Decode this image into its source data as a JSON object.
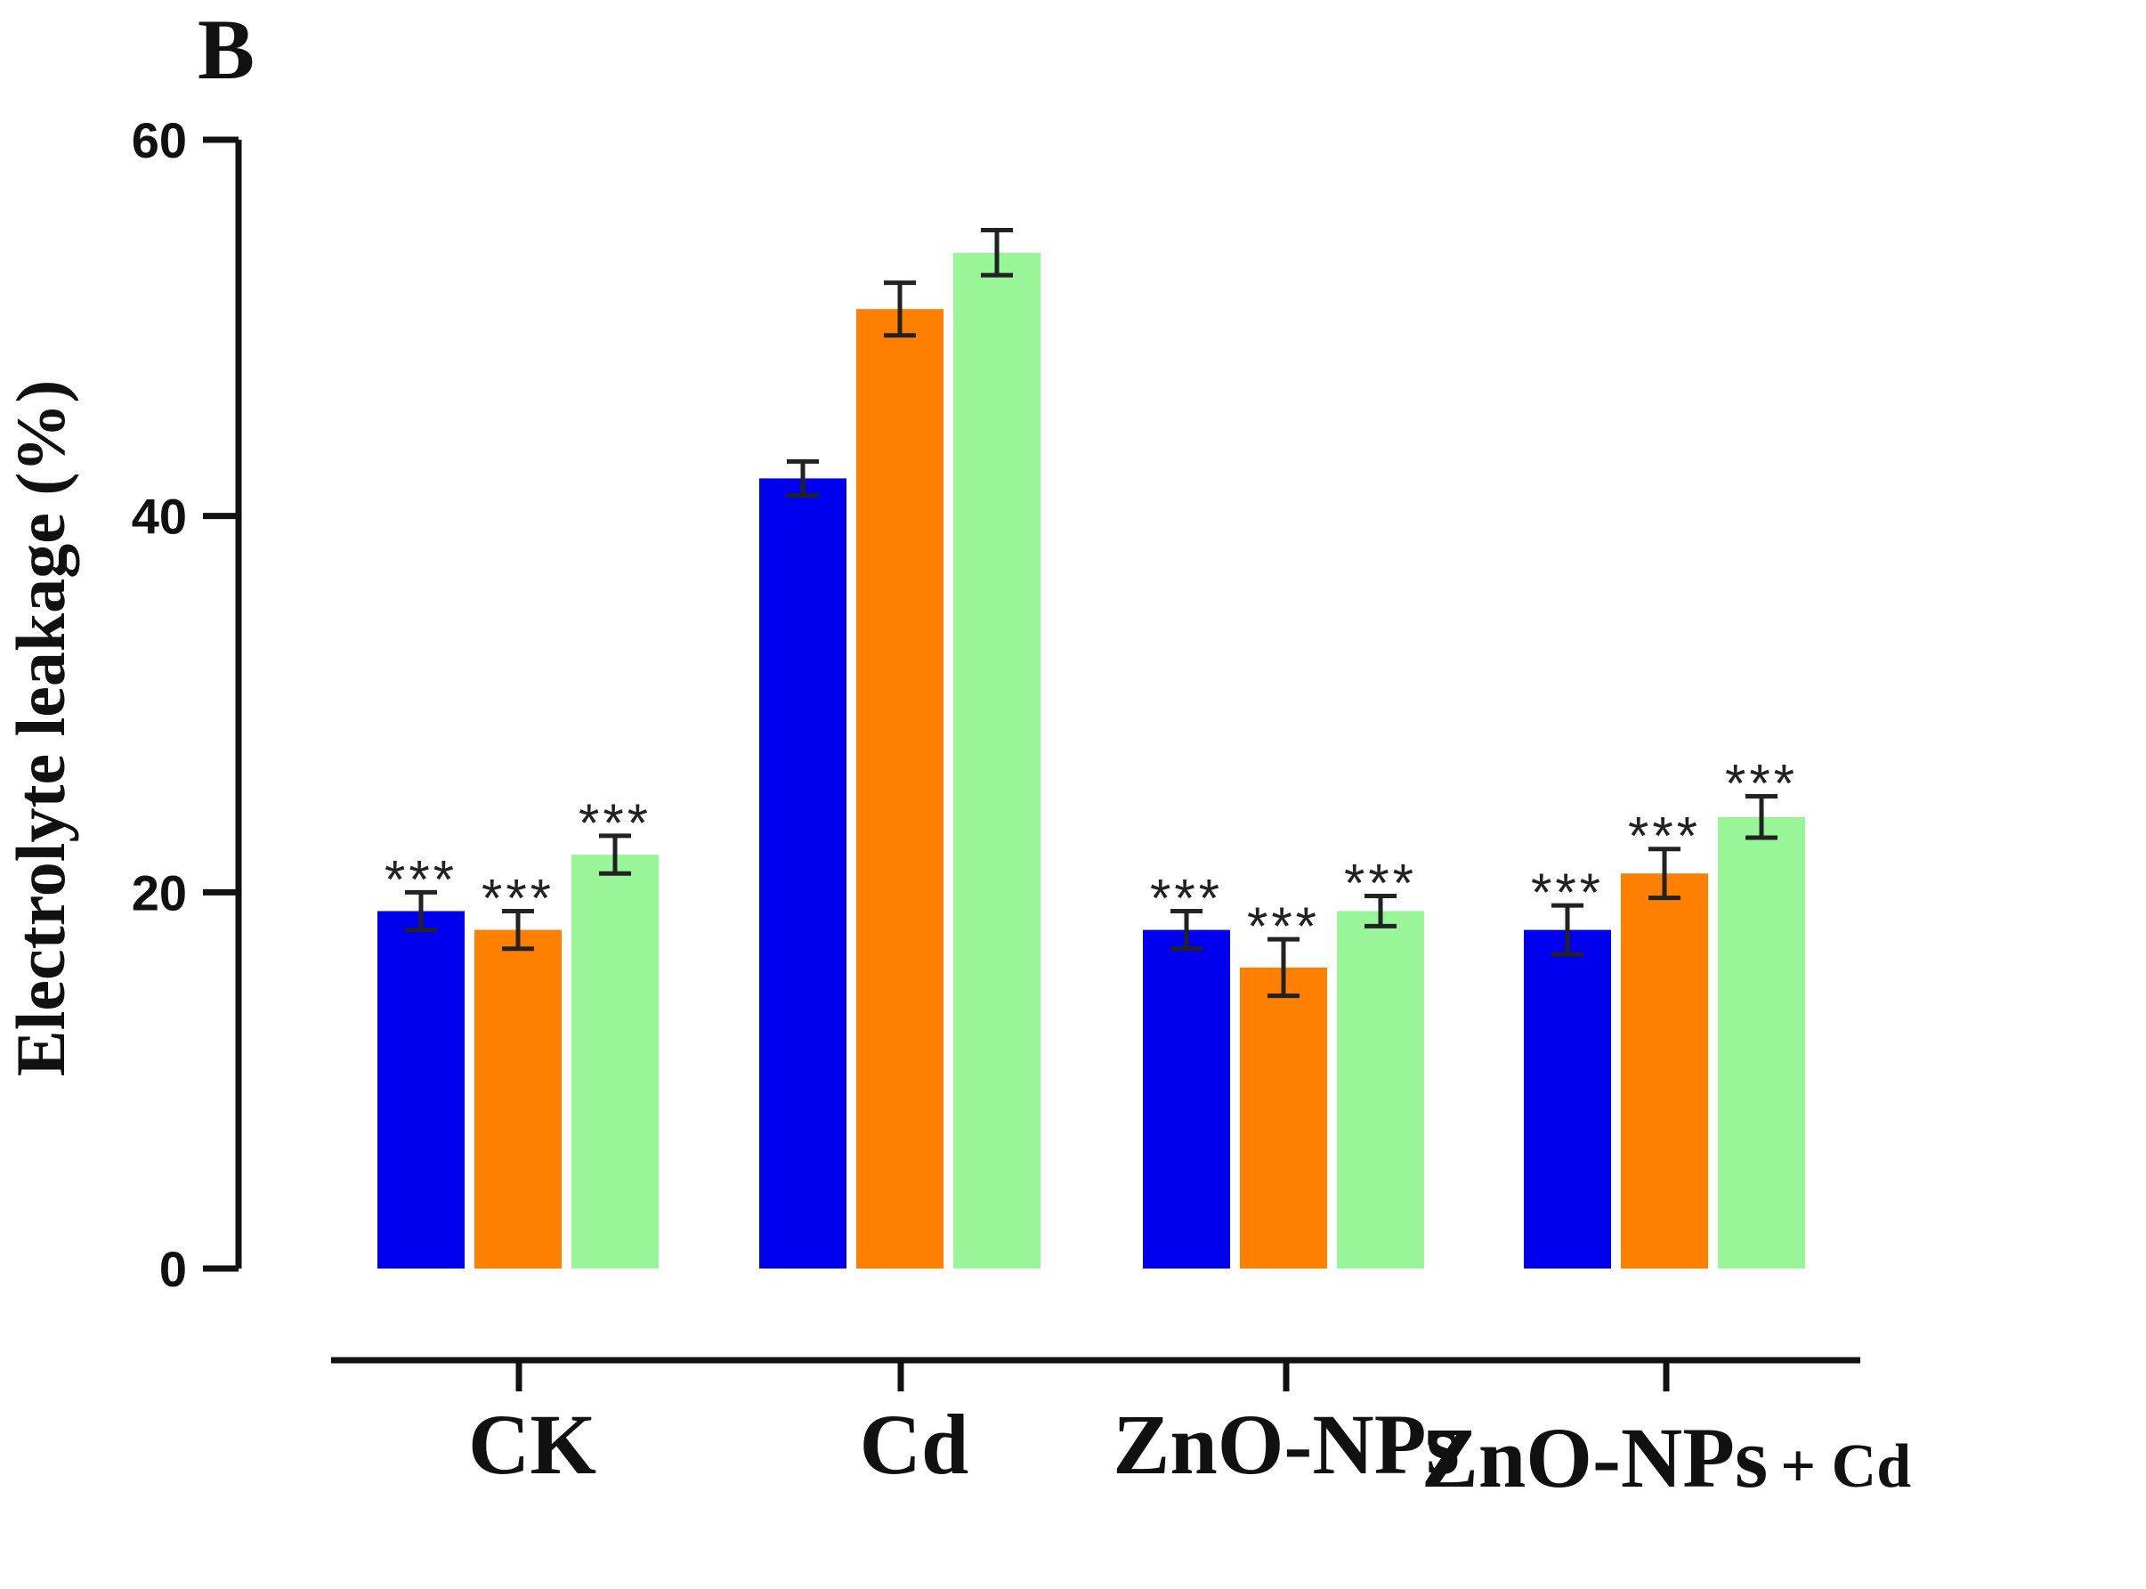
{
  "panel_label": "B",
  "chart_data": {
    "type": "bar",
    "title": "",
    "xlabel": "",
    "ylabel": "Electrolyte leakage (%)",
    "ylim": [
      0,
      60
    ],
    "yticks": [
      0,
      20,
      40,
      60
    ],
    "grid": false,
    "legend": "none",
    "categories": [
      "CK",
      "Cd",
      "ZnO-NPs",
      "ZnO-NPs + Cd"
    ],
    "category_label_parts": [
      {
        "main": "CK"
      },
      {
        "main": "Cd"
      },
      {
        "main": "ZnO-NPs"
      },
      {
        "main": "ZnO-NPs",
        "suffix": "+ Cd"
      }
    ],
    "series": [
      {
        "name": "series-1",
        "color": "#0000ee",
        "values": [
          19,
          42,
          18,
          18
        ],
        "errors": [
          1.0,
          0.9,
          1.0,
          1.3
        ],
        "annotations": [
          "***",
          "",
          "***",
          "***"
        ]
      },
      {
        "name": "series-2",
        "color": "#ff7f00",
        "values": [
          18,
          51,
          16,
          21
        ],
        "errors": [
          1.0,
          1.4,
          1.5,
          1.3
        ],
        "annotations": [
          "***",
          "",
          "***",
          "***"
        ]
      },
      {
        "name": "series-3",
        "color": "#98f598",
        "values": [
          22,
          54,
          19,
          24
        ],
        "errors": [
          1.0,
          1.2,
          0.8,
          1.1
        ],
        "annotations": [
          "***",
          "",
          "***",
          "***"
        ]
      }
    ]
  }
}
